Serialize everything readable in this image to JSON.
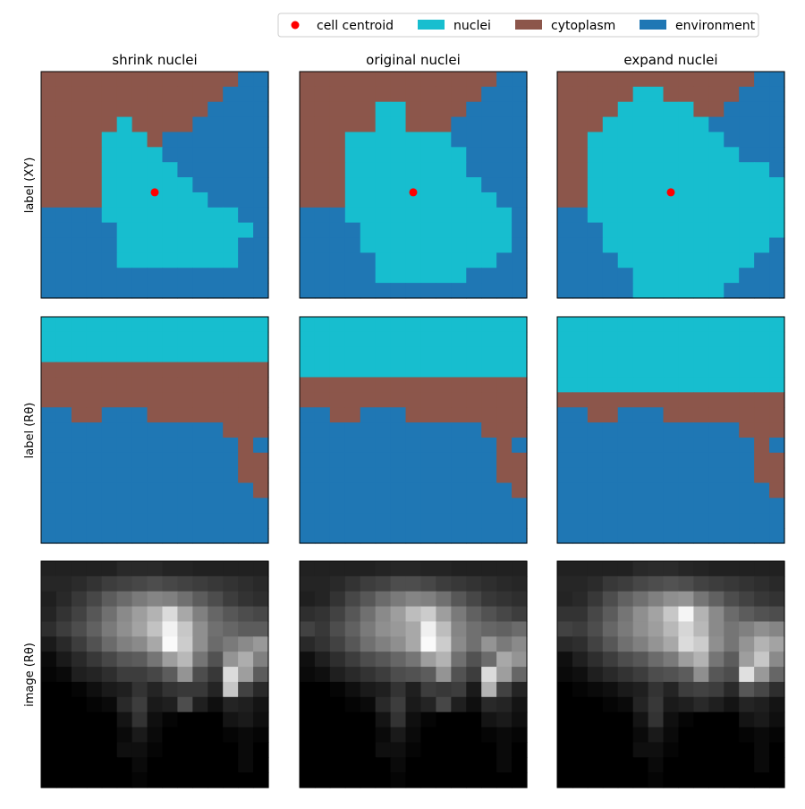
{
  "figure": {
    "legend": [
      {
        "label": "cell centroid",
        "kind": "marker",
        "color": "#ff0000"
      },
      {
        "label": "nuclei",
        "kind": "patch",
        "color": "#17becf"
      },
      {
        "label": "cytoplasm",
        "kind": "patch",
        "color": "#8c564b"
      },
      {
        "label": "environment",
        "kind": "patch",
        "color": "#1f77b4"
      }
    ],
    "column_titles": [
      "shrink nuclei",
      "original nuclei",
      "expand nuclei"
    ],
    "row_labels": [
      "label (XY)",
      "label (Rθ)",
      "image (Rθ)"
    ]
  },
  "chart_data": {
    "type": "heatmap",
    "grid_size": 15,
    "label_values": {
      "nuclei": 2,
      "cytoplasm": 1,
      "environment": 0
    },
    "label_colors": {
      "2": "#17becf",
      "1": "#8c564b",
      "0": "#1f77b4"
    },
    "centroid": {
      "x": 7.5,
      "y": 8.0,
      "color": "#ff0000"
    },
    "label_xy": {
      "environment_top_right": [
        [
          13,
          0
        ],
        [
          14,
          0
        ],
        [
          13,
          1
        ],
        [
          14,
          1
        ],
        [
          14,
          2
        ]
      ],
      "environment_bottom_left_cols": [
        9,
        9,
        9,
        9,
        8,
        7,
        6,
        5,
        4,
        4,
        3,
        2,
        1,
        1,
        0
      ],
      "nuclei_rows": {
        "shrink": [
          null,
          null,
          null,
          [
            5,
            5
          ],
          [
            4,
            6
          ],
          [
            4,
            7
          ],
          [
            4,
            8
          ],
          [
            4,
            9
          ],
          [
            4,
            10
          ],
          [
            4,
            12
          ],
          [
            5,
            13
          ],
          [
            5,
            12
          ],
          [
            5,
            12
          ],
          null,
          null
        ],
        "original": [
          null,
          null,
          [
            5,
            6
          ],
          [
            5,
            6
          ],
          [
            3,
            9
          ],
          [
            3,
            10
          ],
          [
            3,
            10
          ],
          [
            3,
            11
          ],
          [
            3,
            12
          ],
          [
            3,
            13
          ],
          [
            4,
            13
          ],
          [
            4,
            13
          ],
          [
            5,
            12
          ],
          [
            5,
            10
          ],
          null
        ],
        "expand": [
          null,
          [
            5,
            6
          ],
          [
            4,
            8
          ],
          [
            3,
            9
          ],
          [
            2,
            10
          ],
          [
            2,
            11
          ],
          [
            2,
            13
          ],
          [
            2,
            14
          ],
          [
            2,
            14
          ],
          [
            2,
            14
          ],
          [
            3,
            14
          ],
          [
            3,
            13
          ],
          [
            4,
            12
          ],
          [
            5,
            11
          ],
          [
            5,
            10
          ]
        ]
      }
    },
    "label_rtheta": {
      "nuclei_band_rows": {
        "shrink": 3,
        "original": 4,
        "expand": 5
      },
      "environment_start_rows": [
        6,
        6,
        7,
        7,
        6,
        6,
        6,
        7,
        7,
        7,
        7,
        7,
        8,
        8,
        8
      ],
      "notch_into_nuclei_shrink": [
        [
          13,
          3
        ]
      ],
      "extra_environment_cells": [
        [
          13,
          8
        ],
        [
          13,
          9
        ],
        [
          14,
          9
        ],
        [
          13,
          10
        ],
        [
          14,
          10
        ],
        [
          14,
          11
        ]
      ]
    },
    "image_rtheta": {
      "colormap": "gray",
      "range": [
        0,
        1
      ],
      "shrink": [
        [
          0.13,
          0.13,
          0.13,
          0.13,
          0.13,
          0.16,
          0.16,
          0.16,
          0.14,
          0.14,
          0.13,
          0.13,
          0.13,
          0.13,
          0.13
        ],
        [
          0.15,
          0.15,
          0.17,
          0.2,
          0.24,
          0.26,
          0.28,
          0.3,
          0.28,
          0.26,
          0.24,
          0.22,
          0.2,
          0.18,
          0.16
        ],
        [
          0.12,
          0.16,
          0.22,
          0.28,
          0.36,
          0.42,
          0.48,
          0.52,
          0.5,
          0.44,
          0.36,
          0.3,
          0.24,
          0.2,
          0.18
        ],
        [
          0.14,
          0.2,
          0.26,
          0.34,
          0.44,
          0.54,
          0.62,
          0.7,
          0.86,
          0.66,
          0.5,
          0.4,
          0.34,
          0.3,
          0.28
        ],
        [
          0.18,
          0.24,
          0.3,
          0.38,
          0.48,
          0.56,
          0.64,
          0.76,
          0.95,
          0.78,
          0.56,
          0.44,
          0.4,
          0.36,
          0.36
        ],
        [
          0.1,
          0.16,
          0.24,
          0.32,
          0.42,
          0.5,
          0.54,
          0.66,
          0.98,
          0.8,
          0.56,
          0.42,
          0.48,
          0.54,
          0.6
        ],
        [
          0.04,
          0.1,
          0.16,
          0.22,
          0.28,
          0.34,
          0.36,
          0.46,
          0.62,
          0.72,
          0.46,
          0.32,
          0.58,
          0.68,
          0.5
        ],
        [
          0.02,
          0.04,
          0.12,
          0.14,
          0.18,
          0.24,
          0.24,
          0.28,
          0.36,
          0.58,
          0.3,
          0.22,
          0.86,
          0.62,
          0.36
        ],
        [
          0.0,
          0.0,
          0.02,
          0.06,
          0.1,
          0.12,
          0.2,
          0.14,
          0.2,
          0.22,
          0.22,
          0.14,
          0.78,
          0.26,
          0.16
        ],
        [
          0.0,
          0.0,
          0.0,
          0.02,
          0.04,
          0.16,
          0.24,
          0.1,
          0.12,
          0.3,
          0.12,
          0.06,
          0.14,
          0.12,
          0.08
        ],
        [
          0.0,
          0.0,
          0.0,
          0.0,
          0.0,
          0.08,
          0.2,
          0.06,
          0.02,
          0.0,
          0.0,
          0.0,
          0.08,
          0.1,
          0.06
        ],
        [
          0.0,
          0.0,
          0.0,
          0.0,
          0.0,
          0.04,
          0.1,
          0.04,
          0.0,
          0.0,
          0.0,
          0.0,
          0.02,
          0.04,
          0.02
        ],
        [
          0.0,
          0.0,
          0.0,
          0.0,
          0.0,
          0.06,
          0.06,
          0.02,
          0.0,
          0.0,
          0.0,
          0.0,
          0.0,
          0.04,
          0.0
        ],
        [
          0.0,
          0.0,
          0.0,
          0.0,
          0.0,
          0.0,
          0.04,
          0.0,
          0.0,
          0.0,
          0.0,
          0.0,
          0.0,
          0.04,
          0.0
        ],
        [
          0.0,
          0.0,
          0.0,
          0.0,
          0.0,
          0.0,
          0.02,
          0.0,
          0.0,
          0.0,
          0.0,
          0.0,
          0.0,
          0.0,
          0.0
        ]
      ],
      "original": [
        [
          0.13,
          0.13,
          0.13,
          0.13,
          0.13,
          0.14,
          0.15,
          0.15,
          0.14,
          0.14,
          0.13,
          0.13,
          0.13,
          0.13,
          0.13
        ],
        [
          0.14,
          0.14,
          0.16,
          0.2,
          0.24,
          0.26,
          0.3,
          0.3,
          0.28,
          0.24,
          0.22,
          0.2,
          0.18,
          0.16,
          0.15
        ],
        [
          0.12,
          0.14,
          0.2,
          0.28,
          0.34,
          0.42,
          0.48,
          0.52,
          0.5,
          0.44,
          0.34,
          0.28,
          0.22,
          0.2,
          0.18
        ],
        [
          0.18,
          0.2,
          0.26,
          0.34,
          0.44,
          0.54,
          0.62,
          0.74,
          0.8,
          0.62,
          0.48,
          0.38,
          0.32,
          0.28,
          0.24
        ],
        [
          0.26,
          0.22,
          0.3,
          0.38,
          0.48,
          0.56,
          0.6,
          0.66,
          0.94,
          0.74,
          0.52,
          0.44,
          0.4,
          0.38,
          0.42
        ],
        [
          0.16,
          0.2,
          0.26,
          0.34,
          0.44,
          0.5,
          0.56,
          0.66,
          0.98,
          0.8,
          0.54,
          0.44,
          0.58,
          0.48,
          0.54
        ],
        [
          0.06,
          0.12,
          0.18,
          0.24,
          0.3,
          0.34,
          0.4,
          0.46,
          0.62,
          0.7,
          0.44,
          0.32,
          0.42,
          0.66,
          0.58
        ],
        [
          0.04,
          0.06,
          0.12,
          0.16,
          0.2,
          0.24,
          0.3,
          0.32,
          0.36,
          0.58,
          0.32,
          0.24,
          0.86,
          0.62,
          0.4
        ],
        [
          0.0,
          0.0,
          0.02,
          0.06,
          0.1,
          0.12,
          0.2,
          0.12,
          0.24,
          0.22,
          0.24,
          0.1,
          0.7,
          0.26,
          0.14
        ],
        [
          0.0,
          0.0,
          0.0,
          0.02,
          0.04,
          0.16,
          0.24,
          0.1,
          0.14,
          0.28,
          0.12,
          0.06,
          0.16,
          0.14,
          0.08
        ],
        [
          0.0,
          0.0,
          0.0,
          0.0,
          0.0,
          0.08,
          0.2,
          0.06,
          0.02,
          0.0,
          0.0,
          0.0,
          0.08,
          0.1,
          0.06
        ],
        [
          0.0,
          0.0,
          0.0,
          0.0,
          0.0,
          0.04,
          0.1,
          0.04,
          0.0,
          0.0,
          0.0,
          0.0,
          0.02,
          0.04,
          0.02
        ],
        [
          0.0,
          0.0,
          0.0,
          0.0,
          0.0,
          0.06,
          0.06,
          0.02,
          0.0,
          0.0,
          0.0,
          0.0,
          0.0,
          0.04,
          0.0
        ],
        [
          0.0,
          0.0,
          0.0,
          0.0,
          0.0,
          0.0,
          0.04,
          0.0,
          0.0,
          0.0,
          0.0,
          0.0,
          0.0,
          0.04,
          0.0
        ],
        [
          0.0,
          0.0,
          0.0,
          0.0,
          0.0,
          0.0,
          0.02,
          0.0,
          0.0,
          0.0,
          0.0,
          0.0,
          0.0,
          0.0,
          0.0
        ]
      ],
      "expand": [
        [
          0.13,
          0.13,
          0.13,
          0.13,
          0.13,
          0.16,
          0.17,
          0.17,
          0.15,
          0.14,
          0.13,
          0.13,
          0.13,
          0.13,
          0.13
        ],
        [
          0.15,
          0.15,
          0.17,
          0.22,
          0.24,
          0.28,
          0.3,
          0.32,
          0.3,
          0.26,
          0.24,
          0.22,
          0.2,
          0.18,
          0.16
        ],
        [
          0.14,
          0.16,
          0.22,
          0.3,
          0.38,
          0.44,
          0.5,
          0.56,
          0.58,
          0.46,
          0.38,
          0.3,
          0.26,
          0.22,
          0.2
        ],
        [
          0.2,
          0.2,
          0.28,
          0.36,
          0.46,
          0.56,
          0.64,
          0.78,
          0.96,
          0.7,
          0.54,
          0.42,
          0.36,
          0.32,
          0.3
        ],
        [
          0.26,
          0.24,
          0.3,
          0.4,
          0.48,
          0.56,
          0.62,
          0.72,
          0.84,
          0.72,
          0.54,
          0.46,
          0.5,
          0.56,
          0.52
        ],
        [
          0.16,
          0.18,
          0.26,
          0.34,
          0.44,
          0.5,
          0.58,
          0.66,
          0.86,
          0.8,
          0.56,
          0.46,
          0.58,
          0.7,
          0.64
        ],
        [
          0.06,
          0.12,
          0.18,
          0.24,
          0.3,
          0.34,
          0.42,
          0.48,
          0.62,
          0.7,
          0.46,
          0.36,
          0.62,
          0.78,
          0.54
        ],
        [
          0.04,
          0.06,
          0.12,
          0.16,
          0.2,
          0.24,
          0.3,
          0.32,
          0.36,
          0.56,
          0.34,
          0.3,
          0.88,
          0.6,
          0.4
        ],
        [
          0.0,
          0.02,
          0.04,
          0.06,
          0.1,
          0.12,
          0.2,
          0.14,
          0.24,
          0.26,
          0.24,
          0.16,
          0.34,
          0.28,
          0.18
        ],
        [
          0.0,
          0.0,
          0.0,
          0.02,
          0.04,
          0.14,
          0.22,
          0.1,
          0.12,
          0.16,
          0.12,
          0.08,
          0.14,
          0.12,
          0.08
        ],
        [
          0.0,
          0.0,
          0.0,
          0.0,
          0.0,
          0.08,
          0.2,
          0.06,
          0.02,
          0.0,
          0.0,
          0.0,
          0.08,
          0.1,
          0.06
        ],
        [
          0.0,
          0.0,
          0.0,
          0.0,
          0.0,
          0.04,
          0.1,
          0.04,
          0.0,
          0.0,
          0.0,
          0.0,
          0.02,
          0.04,
          0.02
        ],
        [
          0.0,
          0.0,
          0.0,
          0.0,
          0.0,
          0.06,
          0.06,
          0.02,
          0.0,
          0.0,
          0.0,
          0.0,
          0.0,
          0.04,
          0.0
        ],
        [
          0.0,
          0.0,
          0.0,
          0.0,
          0.0,
          0.0,
          0.04,
          0.0,
          0.0,
          0.0,
          0.0,
          0.0,
          0.0,
          0.04,
          0.0
        ],
        [
          0.0,
          0.0,
          0.0,
          0.0,
          0.0,
          0.0,
          0.02,
          0.0,
          0.0,
          0.0,
          0.0,
          0.0,
          0.0,
          0.0,
          0.0
        ]
      ]
    }
  }
}
